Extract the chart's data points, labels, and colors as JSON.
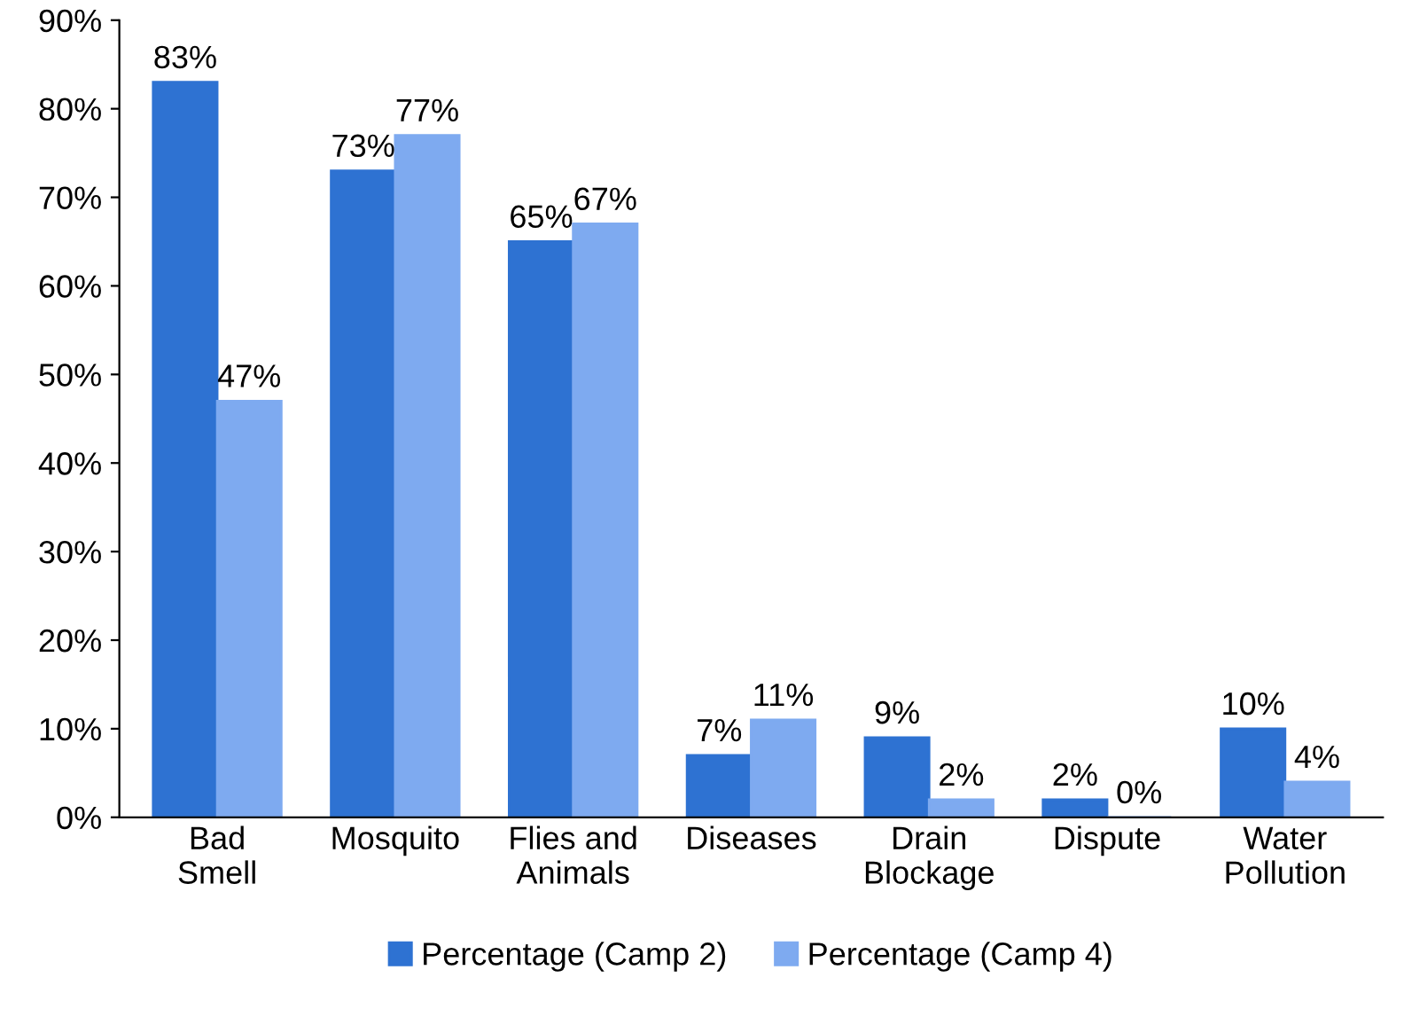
{
  "chart_data": {
    "type": "bar",
    "categories": [
      "Bad\nSmell",
      "Mosquito",
      "Flies and\nAnimals",
      "Diseases",
      "Drain\nBlockage",
      "Dispute",
      "Water\nPollution"
    ],
    "series": [
      {
        "name": "Percentage (Camp 2)",
        "color": "#2e72d2",
        "values": [
          83,
          73,
          65,
          7,
          9,
          2,
          10
        ],
        "value_labels": [
          "83%",
          "73%",
          "65%",
          "7%",
          "9%",
          "2%",
          "10%"
        ]
      },
      {
        "name": "Percentage (Camp 4)",
        "color": "#7eaaf0",
        "values": [
          47,
          77,
          67,
          11,
          2,
          0,
          4
        ],
        "value_labels": [
          "47%",
          "77%",
          "67%",
          "11%",
          "2%",
          "0%",
          "4%"
        ]
      }
    ],
    "ylim": [
      0,
      90
    ],
    "yticks": [
      {
        "value": 0,
        "label": "0%"
      },
      {
        "value": 10,
        "label": "10%"
      },
      {
        "value": 20,
        "label": "20%"
      },
      {
        "value": 30,
        "label": "30%"
      },
      {
        "value": 40,
        "label": "40%"
      },
      {
        "value": 50,
        "label": "50%"
      },
      {
        "value": 60,
        "label": "60%"
      },
      {
        "value": 70,
        "label": "70%"
      },
      {
        "value": 80,
        "label": "80%"
      },
      {
        "value": 90,
        "label": "90%"
      }
    ],
    "grid": false,
    "legend": "bottom"
  }
}
